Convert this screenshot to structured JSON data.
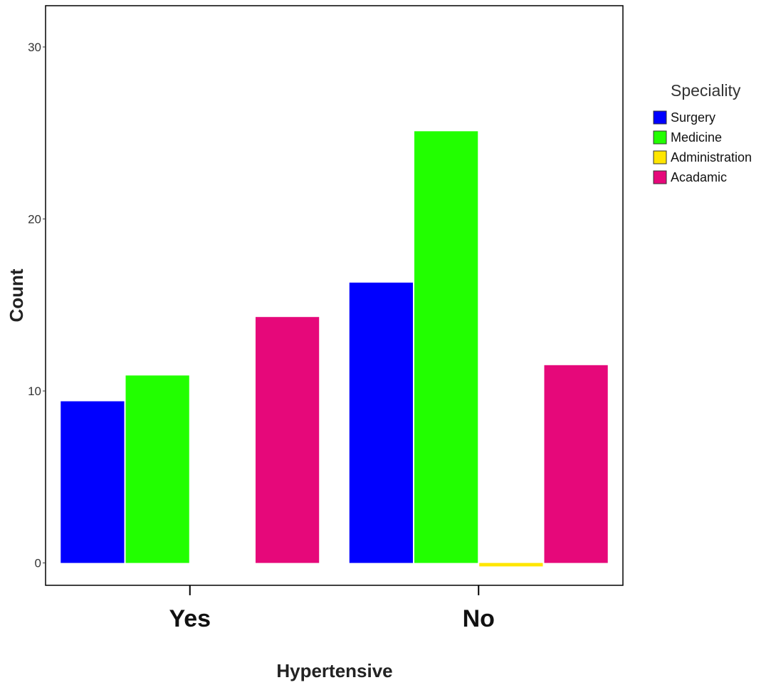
{
  "chart_data": {
    "type": "bar",
    "xlabel": "Hypertensive",
    "ylabel": "Count",
    "categories": [
      "Yes",
      "No"
    ],
    "ylim": [
      -1.3,
      32.4
    ],
    "yticks": [
      0,
      10,
      20,
      30
    ],
    "grid": false,
    "legend": {
      "title": "Speciality",
      "placement": "right"
    },
    "series": [
      {
        "name": "Surgery",
        "color": "#0000FF",
        "values": [
          9.4,
          16.3
        ]
      },
      {
        "name": "Medicine",
        "color": "#22FF00",
        "values": [
          10.9,
          25.1
        ]
      },
      {
        "name": "Administration",
        "color": "#FFE600",
        "values": [
          0,
          -0.2
        ]
      },
      {
        "name": "Acadamic",
        "color": "#E6087A",
        "values": [
          14.3,
          11.5
        ]
      }
    ]
  }
}
